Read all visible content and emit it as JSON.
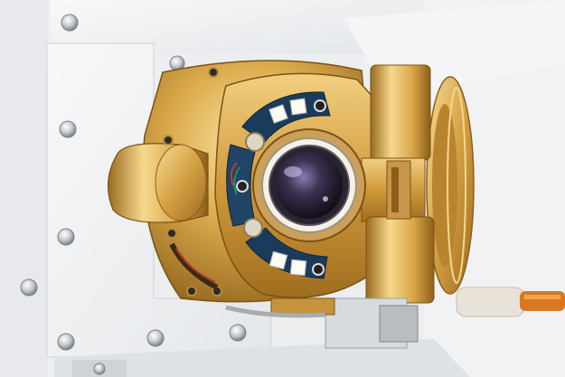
{
  "scene": {
    "subject": "camera-lens-assembly",
    "colors": {
      "background": "#eef0f2",
      "panel": "#f3f4f5",
      "panel_shadow": "#cfd3d6",
      "gold_light": "#f4d58a",
      "gold_mid": "#d4a445",
      "gold_dark": "#8c5f18",
      "pcb_blue": "#1b3b5c",
      "led_white": "#fbfbf2",
      "lens_dark": "#1a1622",
      "lens_purple": "#6f5f8f",
      "screw_silver": "#c9ccd0",
      "cable_orange": "#d9781e"
    }
  }
}
